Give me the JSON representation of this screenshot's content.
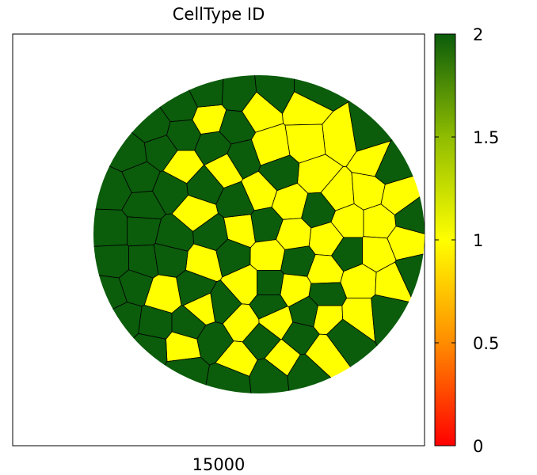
{
  "chart_data": {
    "type": "heatmap",
    "title": "CellType ID",
    "xlabel": "15000",
    "description_values": "cell type per lattice cell: 1 = yellow cells, 2 = dark green cells",
    "colorbar": {
      "range": [
        0,
        2
      ],
      "ticks": [
        0,
        0.5,
        1,
        1.5,
        2
      ],
      "tick_labels": [
        "0",
        "0.5",
        "1",
        "1.5",
        "2"
      ],
      "colors": [
        "#ff0000",
        "#ff8c00",
        "#ffff00",
        "#8fbc00",
        "#0b5c0b"
      ]
    },
    "categories": [
      "1",
      "2"
    ],
    "cell_colors": {
      "1": "#ffff00",
      "2": "#0b5c0b"
    },
    "cells_type1": [
      [
        265,
        150
      ],
      [
        327,
        140
      ],
      [
        385,
        135
      ],
      [
        432,
        175
      ],
      [
        472,
        202
      ],
      [
        342,
        187
      ],
      [
        386,
        180
      ],
      [
        231,
        210
      ],
      [
        284,
        213
      ],
      [
        400,
        222
      ],
      [
        327,
        243
      ],
      [
        367,
        256
      ],
      [
        427,
        245
      ],
      [
        465,
        242
      ],
      [
        502,
        250
      ],
      [
        247,
        268
      ],
      [
        304,
        290
      ],
      [
        440,
        280
      ],
      [
        478,
        280
      ],
      [
        370,
        297
      ],
      [
        413,
        302
      ],
      [
        512,
        305
      ],
      [
        258,
        330
      ],
      [
        340,
        323
      ],
      [
        410,
        343
      ],
      [
        475,
        320
      ],
      [
        207,
        372
      ],
      [
        309,
        360
      ],
      [
        371,
        365
      ],
      [
        454,
        355
      ],
      [
        495,
        357
      ],
      [
        256,
        389
      ],
      [
        305,
        408
      ],
      [
        349,
        405
      ],
      [
        411,
        400
      ],
      [
        454,
        398
      ],
      [
        230,
        438
      ],
      [
        300,
        455
      ],
      [
        357,
        453
      ],
      [
        408,
        445
      ]
    ],
    "cells_type2": [
      [
        262,
        118
      ],
      [
        300,
        120
      ],
      [
        348,
        115
      ],
      [
        395,
        115
      ],
      [
        228,
        135
      ],
      [
        296,
        160
      ],
      [
        193,
        160
      ],
      [
        231,
        170
      ],
      [
        270,
        185
      ],
      [
        462,
        170
      ],
      [
        165,
        195
      ],
      [
        203,
        190
      ],
      [
        305,
        200
      ],
      [
        353,
        218
      ],
      [
        490,
        210
      ],
      [
        177,
        225
      ],
      [
        215,
        240
      ],
      [
        258,
        235
      ],
      [
        300,
        255
      ],
      [
        145,
        240
      ],
      [
        180,
        260
      ],
      [
        402,
        265
      ],
      [
        520,
        275
      ],
      [
        143,
        290
      ],
      [
        178,
        290
      ],
      [
        220,
        300
      ],
      [
        268,
        297
      ],
      [
        335,
        285
      ],
      [
        145,
        330
      ],
      [
        180,
        330
      ],
      [
        214,
        325
      ],
      [
        292,
        322
      ],
      [
        375,
        330
      ],
      [
        440,
        320
      ],
      [
        140,
        370
      ],
      [
        170,
        360
      ],
      [
        245,
        365
      ],
      [
        340,
        360
      ],
      [
        411,
        372
      ],
      [
        521,
        345
      ],
      [
        157,
        405
      ],
      [
        196,
        410
      ],
      [
        281,
        385
      ],
      [
        238,
        410
      ],
      [
        340,
        385
      ],
      [
        387,
        395
      ],
      [
        487,
        395
      ],
      [
        190,
        440
      ],
      [
        270,
        430
      ],
      [
        330,
        430
      ],
      [
        380,
        425
      ],
      [
        435,
        425
      ],
      [
        234,
        470
      ],
      [
        290,
        480
      ],
      [
        340,
        475
      ],
      [
        385,
        470
      ]
    ]
  }
}
